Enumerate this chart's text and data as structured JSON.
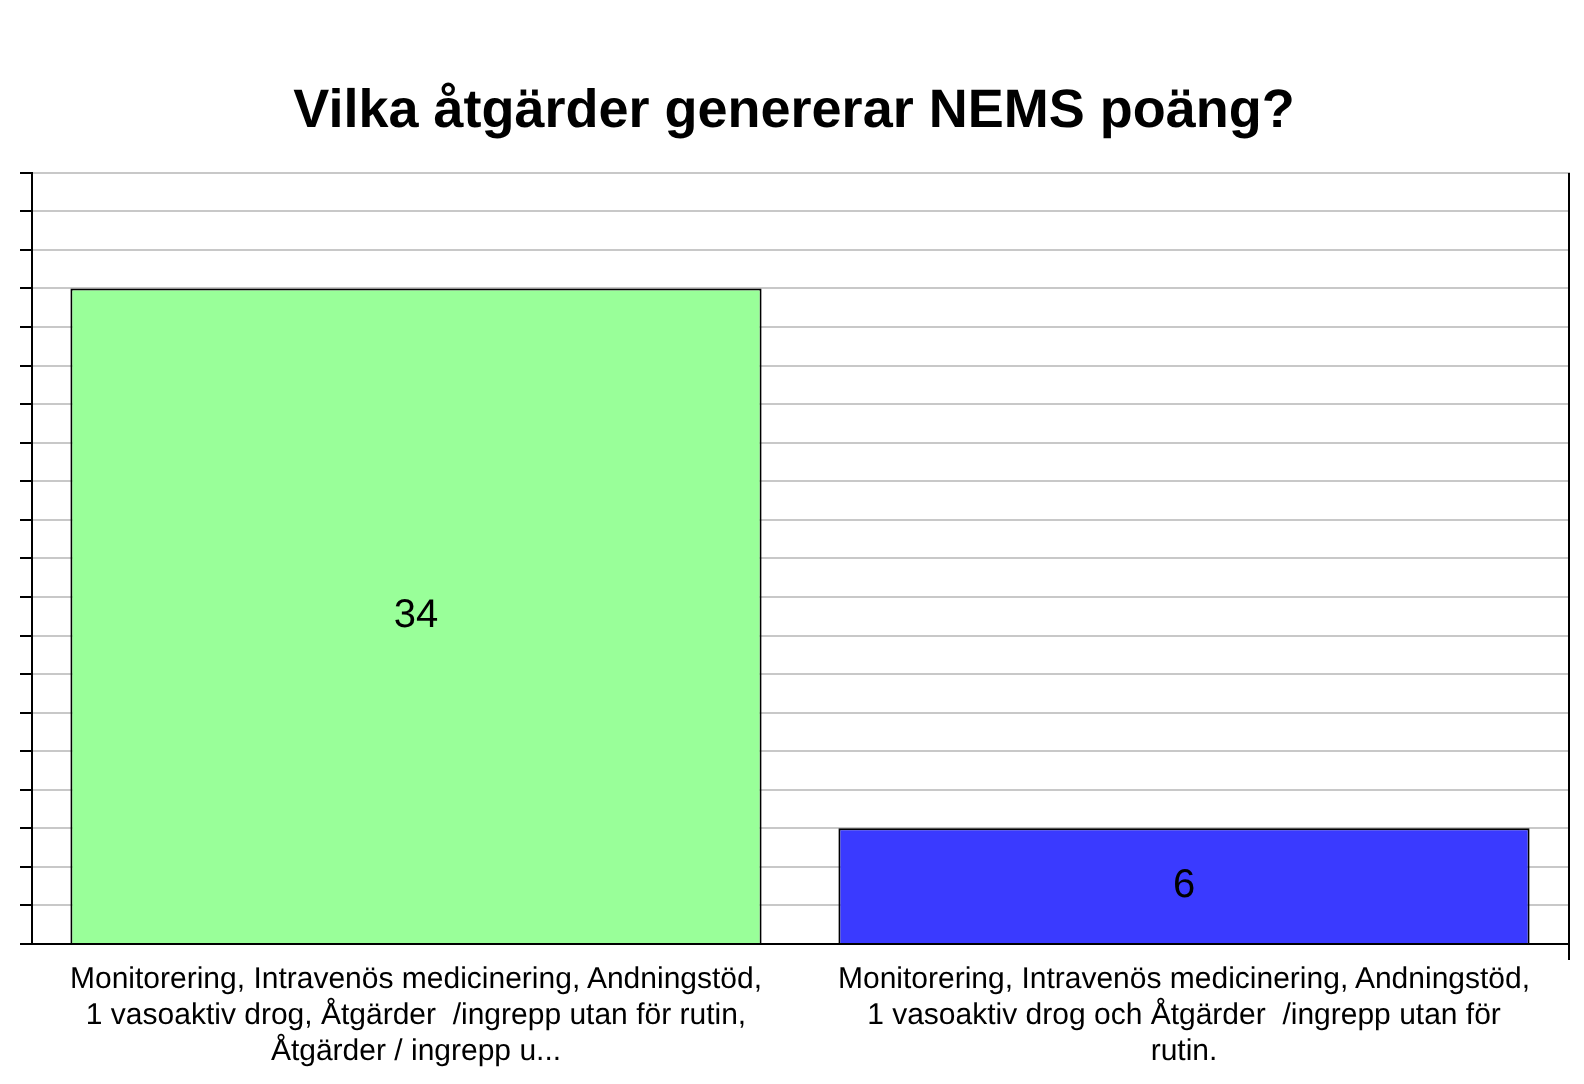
{
  "chart_data": {
    "type": "bar",
    "title": "Vilka åtgärder genererar NEMS poäng?",
    "categories": [
      "Monitorering, Intravenös medicinering, Andningstöd, 1 vasoaktiv drog, Åtgärder  /ingrepp utan för rutin, Åtgärder / ingrepp u...",
      "Monitorering, Intravenös medicinering, Andningstöd, 1 vasoaktiv drog och Åtgärder  /ingrepp utan för rutin."
    ],
    "values": [
      34,
      6
    ],
    "colors": [
      "#99ff99",
      "#3a3aff"
    ],
    "ylim": [
      0,
      40
    ],
    "yticks": [
      {
        "value": 0,
        "label": null
      },
      {
        "value": 2,
        "label": null
      },
      {
        "value": 4,
        "label": null
      },
      {
        "value": 6,
        "label": null
      },
      {
        "value": 8,
        "label": null
      },
      {
        "value": 10,
        "label": null
      },
      {
        "value": 12,
        "label": null
      },
      {
        "value": 14,
        "label": null
      },
      {
        "value": 16,
        "label": null
      },
      {
        "value": 18,
        "label": null
      },
      {
        "value": 20,
        "label": null
      },
      {
        "value": 22,
        "label": null
      },
      {
        "value": 24,
        "label": null
      },
      {
        "value": 26,
        "label": null
      },
      {
        "value": 28,
        "label": null
      },
      {
        "value": 30,
        "label": null
      },
      {
        "value": 32,
        "label": null
      },
      {
        "value": 34,
        "label": null
      },
      {
        "value": 36,
        "label": null
      },
      {
        "value": 38,
        "label": null
      },
      {
        "value": 40,
        "label": null
      }
    ],
    "grid": "y",
    "data_labels": true
  }
}
